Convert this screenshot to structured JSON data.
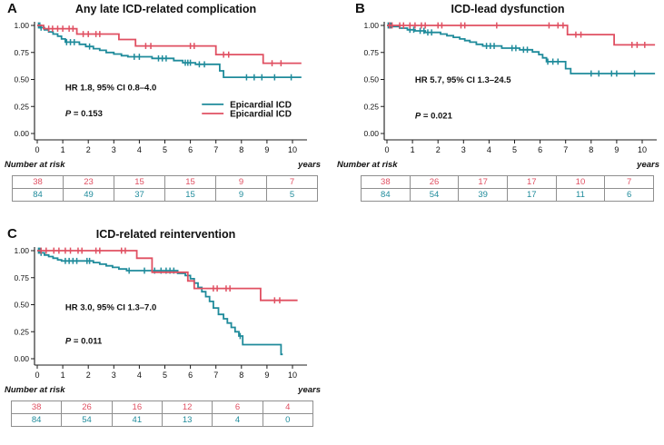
{
  "labels": {
    "number_at_risk": "Number at risk",
    "years": "years"
  },
  "colors": {
    "teal": "#1f8b9b",
    "red": "#e05062",
    "axis": "#1c1c1c",
    "table_border": "#8f8f8f"
  },
  "chart_data": [
    {
      "type": "line",
      "panel_label": "A",
      "title": "Any late ICD-related complication",
      "hr_text": "HR 1.8, 95% CI 0.8–4.0",
      "p_text": "P = 0.153",
      "xlabel": "years",
      "xlim": [
        0,
        10.5
      ],
      "ylim": [
        0,
        1
      ],
      "x_ticks": [
        0,
        1,
        2,
        3,
        4,
        5,
        6,
        7,
        8,
        9,
        10
      ],
      "y_ticks": [
        {
          "label": "0.00",
          "v": 0
        },
        {
          "label": "0.25",
          "v": 0.25
        },
        {
          "label": "0.50",
          "v": 0.5
        },
        {
          "label": "0.75",
          "v": 0.75
        },
        {
          "label": "1.00",
          "v": 1
        }
      ],
      "hr_pos": [
        1.1,
        0.4
      ],
      "p_pos": [
        1.1,
        0.16
      ],
      "legend": {
        "line_t": [
          6.45,
          7.3
        ],
        "label_t": 7.55,
        "rows": [
          {
            "label": "Epicardial ICD",
            "color": "teal",
            "s": 0.27
          },
          {
            "label": "Epicardial ICD",
            "color": "red",
            "s": 0.185
          }
        ]
      },
      "series": [
        {
          "name": "Epicardial ICD",
          "color_key": "teal",
          "steps": [
            [
              0,
              1
            ],
            [
              0.12,
              0.98
            ],
            [
              0.28,
              0.96
            ],
            [
              0.45,
              0.94
            ],
            [
              0.62,
              0.92
            ],
            [
              0.8,
              0.9
            ],
            [
              0.95,
              0.875
            ],
            [
              1.1,
              0.845
            ],
            [
              1.65,
              0.825
            ],
            [
              1.9,
              0.805
            ],
            [
              2.2,
              0.785
            ],
            [
              2.45,
              0.77
            ],
            [
              2.7,
              0.75
            ],
            [
              3,
              0.735
            ],
            [
              3.3,
              0.72
            ],
            [
              3.55,
              0.71
            ],
            [
              4.5,
              0.695
            ],
            [
              5.35,
              0.675
            ],
            [
              5.7,
              0.655
            ],
            [
              6.2,
              0.64
            ],
            [
              7.15,
              0.58
            ],
            [
              7.3,
              0.52
            ]
          ],
          "end": 10.35,
          "censors": [
            0.05,
            0.1,
            0.15,
            1.15,
            1.3,
            1.45,
            2.05,
            3.8,
            4,
            4.75,
            4.9,
            5.05,
            5.8,
            5.9,
            6,
            6.35,
            6.55,
            8.2,
            8.5,
            8.8,
            9.3,
            9.95
          ]
        },
        {
          "name": "Epicardial ICD",
          "color_key": "red",
          "steps": [
            [
              0,
              1
            ],
            [
              0.25,
              0.97
            ],
            [
              1.55,
              0.92
            ],
            [
              3.2,
              0.87
            ],
            [
              3.85,
              0.81
            ],
            [
              7,
              0.73
            ],
            [
              8.85,
              0.65
            ]
          ],
          "end": 10.35,
          "censors": [
            0.45,
            0.6,
            0.8,
            1,
            1.25,
            1.4,
            1.8,
            2,
            2.3,
            2.45,
            4.25,
            4.45,
            6,
            6.15,
            7.3,
            7.5,
            9.2,
            9.55
          ]
        }
      ],
      "risk_rows": [
        {
          "color": "red",
          "values": [
            38,
            23,
            15,
            15,
            9,
            7
          ]
        },
        {
          "color": "teal",
          "values": [
            84,
            49,
            37,
            15,
            9,
            5
          ]
        }
      ]
    },
    {
      "type": "line",
      "panel_label": "B",
      "title": "ICD-lead dysfunction",
      "hr_text": "HR 5.7, 95% CI 1.3–24.5",
      "p_text": "P = 0.021",
      "xlabel": "years",
      "xlim": [
        0,
        10.5
      ],
      "ylim": [
        0,
        1
      ],
      "x_ticks": [
        0,
        1,
        2,
        3,
        4,
        5,
        6,
        7,
        8,
        9,
        10
      ],
      "y_ticks": [
        {
          "label": "0.00",
          "v": 0
        },
        {
          "label": "0.25",
          "v": 0.25
        },
        {
          "label": "0.50",
          "v": 0.5
        },
        {
          "label": "0.75",
          "v": 0.75
        },
        {
          "label": "1.00",
          "v": 1
        }
      ],
      "hr_pos": [
        1.1,
        0.47
      ],
      "p_pos": [
        1.1,
        0.14
      ],
      "legend": null,
      "series": [
        {
          "name": "Epicardial ICD",
          "color_key": "teal",
          "steps": [
            [
              0,
              1
            ],
            [
              0.2,
              0.99
            ],
            [
              0.5,
              0.975
            ],
            [
              0.8,
              0.96
            ],
            [
              1.1,
              0.95
            ],
            [
              1.5,
              0.935
            ],
            [
              2.1,
              0.92
            ],
            [
              2.35,
              0.905
            ],
            [
              2.6,
              0.89
            ],
            [
              2.85,
              0.875
            ],
            [
              3.05,
              0.86
            ],
            [
              3.25,
              0.845
            ],
            [
              3.5,
              0.825
            ],
            [
              3.75,
              0.81
            ],
            [
              4.5,
              0.79
            ],
            [
              5.2,
              0.775
            ],
            [
              5.7,
              0.755
            ],
            [
              5.95,
              0.73
            ],
            [
              6.1,
              0.7
            ],
            [
              6.25,
              0.665
            ],
            [
              7,
              0.6
            ],
            [
              7.2,
              0.555
            ]
          ],
          "end": 10.5,
          "censors": [
            0.05,
            0.1,
            0.15,
            0.9,
            1.05,
            1.3,
            1.45,
            1.6,
            1.75,
            3.9,
            4.05,
            4.2,
            4.9,
            5.05,
            5.35,
            5.5,
            6.3,
            6.5,
            6.7,
            8,
            8.3,
            8.8,
            9,
            9.7
          ]
        },
        {
          "name": "Epicardial ICD",
          "color_key": "red",
          "steps": [
            [
              0,
              1
            ],
            [
              7.07,
              0.915
            ],
            [
              8.9,
              0.82
            ]
          ],
          "end": 10.5,
          "censors": [
            0.1,
            0.2,
            0.5,
            0.65,
            0.9,
            1.1,
            1.35,
            1.5,
            2,
            2.15,
            2.9,
            3.05,
            4.3,
            6.35,
            6.7,
            6.9,
            7.4,
            7.6,
            9.6,
            9.8,
            10.1
          ]
        }
      ],
      "risk_rows": [
        {
          "color": "red",
          "values": [
            38,
            26,
            17,
            17,
            10,
            7
          ]
        },
        {
          "color": "teal",
          "values": [
            84,
            54,
            39,
            17,
            11,
            6
          ]
        }
      ]
    },
    {
      "type": "line",
      "panel_label": "C",
      "title": "ICD-related reintervention",
      "hr_text": "HR 3.0, 95% CI 1.3–7.0",
      "p_text": "P = 0.011",
      "xlabel": "years",
      "xlim": [
        0,
        10.5
      ],
      "ylim": [
        0,
        1
      ],
      "x_ticks": [
        0,
        1,
        2,
        3,
        4,
        5,
        6,
        7,
        8,
        9,
        10
      ],
      "y_ticks": [
        {
          "label": "0.00",
          "v": 0
        },
        {
          "label": "0.25",
          "v": 0.25
        },
        {
          "label": "0.50",
          "v": 0.5
        },
        {
          "label": "0.75",
          "v": 0.75
        },
        {
          "label": "1.00",
          "v": 1
        }
      ],
      "hr_pos": [
        1.1,
        0.45
      ],
      "p_pos": [
        1.1,
        0.14
      ],
      "legend": null,
      "series": [
        {
          "name": "Epicardial ICD",
          "color_key": "teal",
          "steps": [
            [
              0,
              1
            ],
            [
              0.12,
              0.98
            ],
            [
              0.28,
              0.96
            ],
            [
              0.45,
              0.945
            ],
            [
              0.62,
              0.93
            ],
            [
              0.8,
              0.915
            ],
            [
              0.95,
              0.905
            ],
            [
              2.2,
              0.89
            ],
            [
              2.45,
              0.875
            ],
            [
              2.7,
              0.86
            ],
            [
              2.95,
              0.845
            ],
            [
              3.2,
              0.83
            ],
            [
              3.5,
              0.815
            ],
            [
              5.5,
              0.79
            ],
            [
              5.8,
              0.77
            ],
            [
              6,
              0.74
            ],
            [
              6.15,
              0.7
            ],
            [
              6.3,
              0.66
            ],
            [
              6.45,
              0.62
            ],
            [
              6.6,
              0.575
            ],
            [
              6.75,
              0.53
            ],
            [
              6.9,
              0.47
            ],
            [
              7.1,
              0.41
            ],
            [
              7.3,
              0.37
            ],
            [
              7.45,
              0.33
            ],
            [
              7.6,
              0.29
            ],
            [
              7.75,
              0.25
            ],
            [
              7.9,
              0.21
            ],
            [
              8.05,
              0.13
            ],
            [
              9.55,
              0.04
            ]
          ],
          "end": 9.62,
          "censors": [
            0.05,
            0.1,
            0.15,
            1.1,
            1.25,
            1.4,
            1.55,
            1.95,
            2.05,
            3.6,
            4.2,
            4.6,
            4.85,
            5.05,
            5.2,
            5.35,
            7.95
          ]
        },
        {
          "name": "Epicardial ICD",
          "color_key": "red",
          "steps": [
            [
              0,
              1
            ],
            [
              3.9,
              0.93
            ],
            [
              4.5,
              0.8
            ],
            [
              5.9,
              0.72
            ],
            [
              6.15,
              0.65
            ],
            [
              8.75,
              0.54
            ]
          ],
          "end": 10.2,
          "censors": [
            0.15,
            0.35,
            0.65,
            0.85,
            1.1,
            1.3,
            1.6,
            1.75,
            2.3,
            2.45,
            3.3,
            3.45,
            6.9,
            7.05,
            7.4,
            7.55,
            9.3,
            9.5
          ]
        }
      ],
      "risk_rows": [
        {
          "color": "red",
          "values": [
            38,
            26,
            16,
            12,
            6,
            4
          ]
        },
        {
          "color": "teal",
          "values": [
            84,
            54,
            41,
            13,
            4,
            0
          ]
        }
      ]
    }
  ]
}
